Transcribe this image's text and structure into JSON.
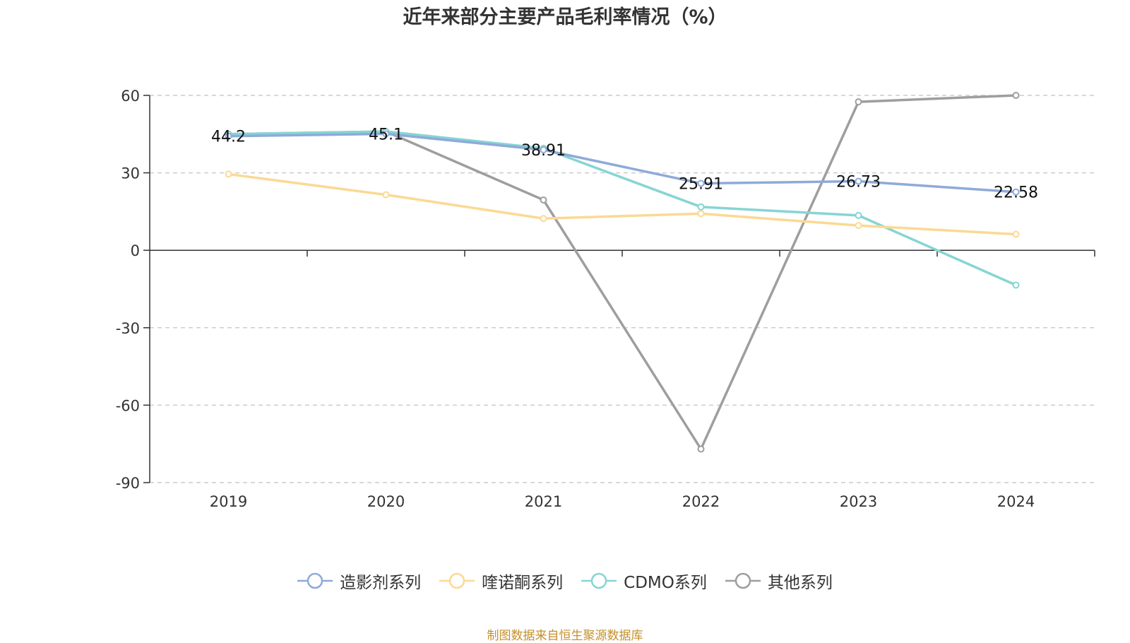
{
  "chart_data": {
    "type": "line",
    "title": "近年来部分主要产品毛利率情况（%）",
    "x": [
      "2019",
      "2020",
      "2021",
      "2022",
      "2023",
      "2024"
    ],
    "ylim": [
      -90,
      60
    ],
    "yticks": [
      60,
      30,
      0,
      -30,
      -60,
      -90
    ],
    "grid": "dashed horizontal",
    "legend_position": "bottom",
    "series": [
      {
        "name": "造影剂系列",
        "color": "#8eaad9",
        "values": [
          44.2,
          45.1,
          38.91,
          25.91,
          26.73,
          22.58
        ],
        "labels": [
          "44.2",
          "45.1",
          "38.91",
          "25.91",
          "26.73",
          "22.58"
        ]
      },
      {
        "name": "喹诺酮系列",
        "color": "#fbd994",
        "values": [
          29.5,
          21.5,
          12.3,
          14.2,
          9.6,
          6.2
        ]
      },
      {
        "name": "CDMO系列",
        "color": "#86d5d3",
        "values": [
          45.0,
          46.0,
          39.5,
          16.8,
          13.5,
          -13.5
        ]
      },
      {
        "name": "其他系列",
        "color": "#9e9e9e",
        "values": [
          45.0,
          46.0,
          19.5,
          -77.0,
          57.5,
          60.0
        ]
      }
    ]
  },
  "source": "制图数据来自恒生聚源数据库"
}
